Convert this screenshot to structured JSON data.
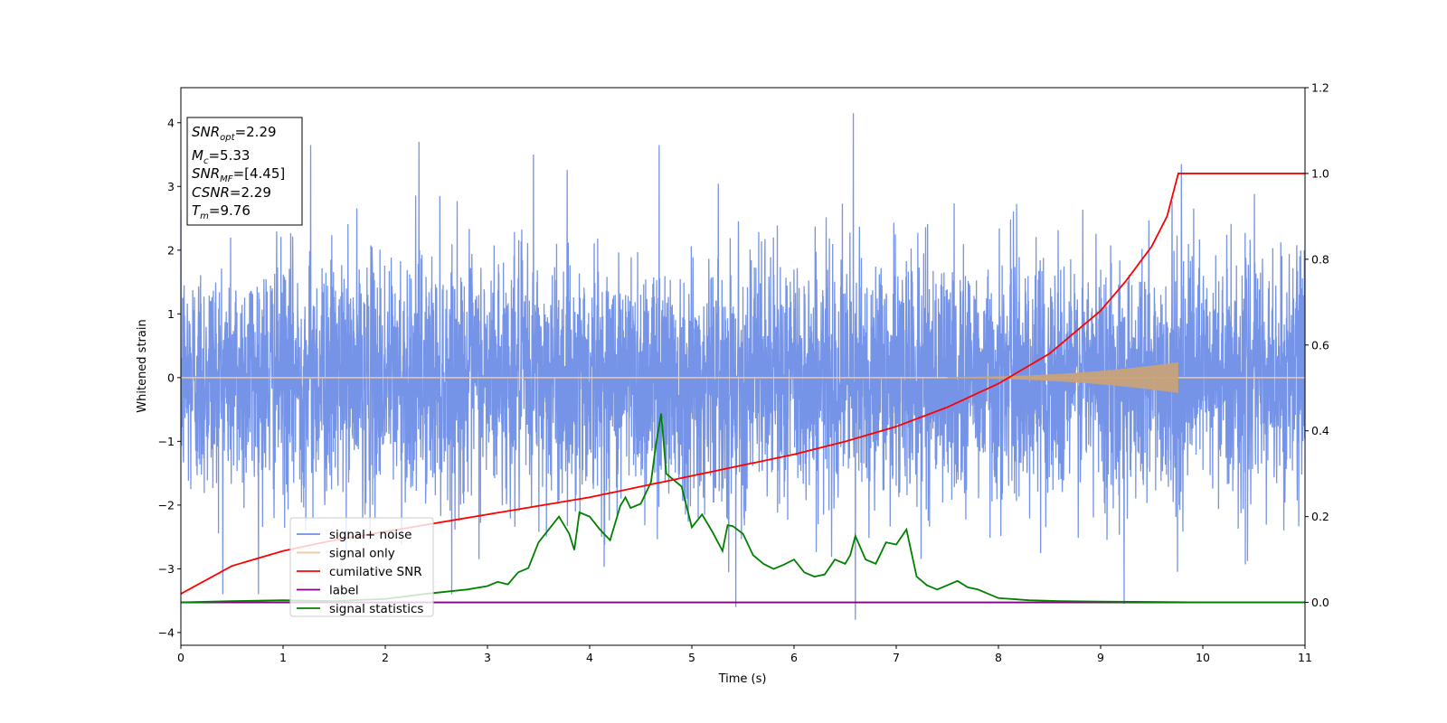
{
  "chart_data": {
    "type": "line",
    "xlabel": "Time (s)",
    "ylabel": "Whitened strain",
    "x_ticks": [
      "0",
      "1",
      "2",
      "3",
      "4",
      "5",
      "6",
      "7",
      "8",
      "9",
      "10",
      "11"
    ],
    "y_ticks": [
      "4",
      "3",
      "2",
      "1",
      "0",
      "−1",
      "−2",
      "−3",
      "−4"
    ],
    "y2_ticks": [
      "1.2",
      "1.0",
      "0.8",
      "0.6",
      "0.4",
      "0.2",
      "0.0"
    ],
    "xlim": [
      0,
      11
    ],
    "ylim": [
      -4.2,
      4.55
    ],
    "y2lim": [
      -0.1,
      1.2
    ],
    "grid": false,
    "legend_position": "lower-left",
    "colors": {
      "signal_noise": "#6f8ee6",
      "signal_only": "#f5c98a",
      "cumulative_snr": "#ff0000",
      "label": "#800080",
      "signal_statistics": "#008000",
      "chirp_fill": "#c8a27a"
    },
    "info_box": {
      "snr_opt": {
        "base": "SNR",
        "sub": "opt",
        "value": "=2.29"
      },
      "mc": {
        "base": "M",
        "sub": "c",
        "value": "=5.33"
      },
      "snr_mf": {
        "base": "SNR",
        "sub": "MF",
        "value": "=[4.45]"
      },
      "csnr": {
        "base": "CSNR",
        "value": "=2.29"
      },
      "tm": {
        "base": "T",
        "sub": "m",
        "value": "=9.76"
      }
    },
    "series": [
      {
        "name": "signal+ noise",
        "axis": "left",
        "description_values": "gaussian noise, std ~0.95, range approx -3.8 to 4.2",
        "peaks": [
          {
            "x": 1.27,
            "y": 3.65
          },
          {
            "x": 2.33,
            "y": 3.7
          },
          {
            "x": 3.45,
            "y": 3.5
          },
          {
            "x": 4.68,
            "y": 3.65
          },
          {
            "x": 6.58,
            "y": 4.15
          },
          {
            "x": 5.43,
            "y": -3.6
          },
          {
            "x": 6.6,
            "y": -3.8
          },
          {
            "x": 9.23,
            "y": -3.55
          }
        ]
      },
      {
        "name": "signal only",
        "axis": "left",
        "chirp_start": 7.5,
        "chirp_end": 9.76,
        "max_amplitude": 0.23
      },
      {
        "name": "cumilative SNR",
        "axis": "right",
        "x": [
          0,
          0.5,
          1,
          1.5,
          2,
          2.5,
          3,
          3.5,
          4,
          4.5,
          5,
          5.5,
          6,
          6.5,
          7,
          7.5,
          8,
          8.5,
          9,
          9.25,
          9.5,
          9.65,
          9.76,
          11
        ],
        "values": [
          0.02,
          0.085,
          0.12,
          0.145,
          0.165,
          0.185,
          0.205,
          0.225,
          0.245,
          0.27,
          0.295,
          0.32,
          0.345,
          0.375,
          0.41,
          0.455,
          0.51,
          0.58,
          0.68,
          0.75,
          0.83,
          0.9,
          1.0,
          1.0
        ]
      },
      {
        "name": "label",
        "axis": "right",
        "x": [
          0,
          11
        ],
        "values": [
          0.0,
          0.0
        ]
      },
      {
        "name": "signal statistics",
        "axis": "right",
        "x": [
          0,
          0.5,
          1,
          1.5,
          2,
          2.4,
          2.6,
          2.8,
          3.0,
          3.1,
          3.2,
          3.3,
          3.4,
          3.5,
          3.6,
          3.7,
          3.8,
          3.85,
          3.9,
          4.0,
          4.1,
          4.2,
          4.3,
          4.35,
          4.4,
          4.5,
          4.6,
          4.65,
          4.7,
          4.75,
          4.8,
          4.9,
          5.0,
          5.1,
          5.2,
          5.3,
          5.35,
          5.4,
          5.5,
          5.6,
          5.7,
          5.8,
          5.9,
          6.0,
          6.1,
          6.2,
          6.3,
          6.4,
          6.5,
          6.55,
          6.6,
          6.7,
          6.8,
          6.9,
          7.0,
          7.1,
          7.2,
          7.3,
          7.4,
          7.5,
          7.6,
          7.7,
          7.8,
          7.9,
          8.0,
          8.3,
          8.6,
          9.0,
          9.5,
          10,
          11
        ],
        "values": [
          0.0,
          0.003,
          0.005,
          0.003,
          0.008,
          0.02,
          0.025,
          0.03,
          0.038,
          0.048,
          0.042,
          0.07,
          0.08,
          0.14,
          0.17,
          0.2,
          0.16,
          0.122,
          0.21,
          0.2,
          0.17,
          0.145,
          0.225,
          0.245,
          0.22,
          0.23,
          0.28,
          0.37,
          0.44,
          0.3,
          0.29,
          0.27,
          0.175,
          0.205,
          0.165,
          0.12,
          0.18,
          0.178,
          0.16,
          0.11,
          0.09,
          0.078,
          0.088,
          0.1,
          0.07,
          0.06,
          0.065,
          0.1,
          0.09,
          0.11,
          0.155,
          0.1,
          0.09,
          0.14,
          0.135,
          0.17,
          0.06,
          0.04,
          0.03,
          0.04,
          0.05,
          0.035,
          0.03,
          0.02,
          0.01,
          0.005,
          0.003,
          0.002,
          0.001,
          0.0,
          0.0
        ]
      }
    ]
  },
  "legend": [
    {
      "label": "signal+ noise",
      "color": "#6f8ee6"
    },
    {
      "label": "signal only",
      "color": "#f5c98a"
    },
    {
      "label": "cumilative SNR",
      "color": "#ff0000"
    },
    {
      "label": "label",
      "color": "#800080"
    },
    {
      "label": "signal statistics",
      "color": "#008000"
    }
  ]
}
